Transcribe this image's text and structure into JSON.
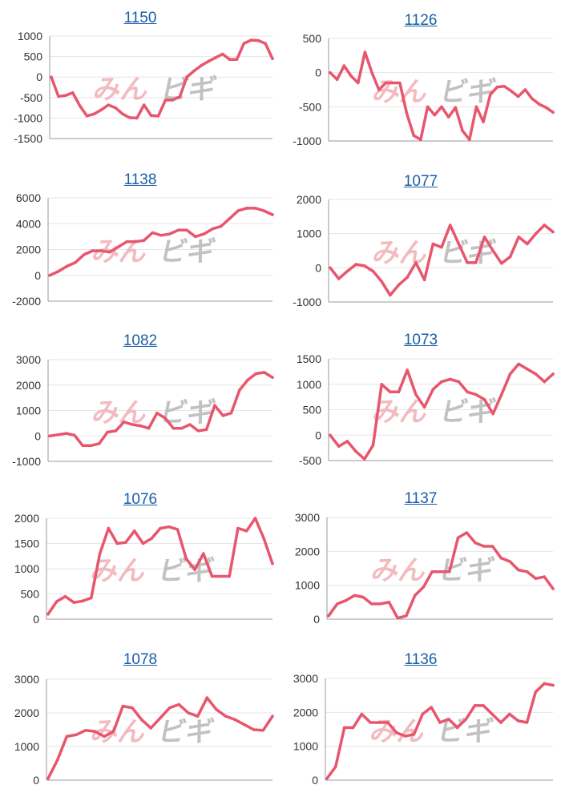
{
  "watermark": {
    "left": "みん",
    "right": "ビギ"
  },
  "colors": {
    "line": "#e8566e",
    "grid": "#e6e6e6",
    "axis": "#9a9a9a",
    "title": "#1a5ea8",
    "tick": "#333333",
    "wm_left": "#f0b0b4",
    "wm_right": "#b8b8b8"
  },
  "chart_data": [
    {
      "type": "line",
      "title": "1150",
      "ylim": [
        -1500,
        1000
      ],
      "yticks": [
        1000,
        500,
        0,
        -500,
        -1000,
        -1500
      ],
      "y": [
        0,
        -470,
        -450,
        -380,
        -700,
        -950,
        -900,
        -800,
        -680,
        -750,
        -900,
        -990,
        -1000,
        -680,
        -940,
        -950,
        -560,
        -560,
        -480,
        0,
        150,
        280,
        380,
        470,
        560,
        430,
        430,
        820,
        900,
        890,
        820,
        450
      ]
    },
    {
      "type": "line",
      "title": "1126",
      "ylim": [
        -1000,
        500
      ],
      "yticks": [
        500,
        0,
        -500,
        -1000
      ],
      "y": [
        0,
        -100,
        100,
        -50,
        -150,
        300,
        0,
        -250,
        -150,
        -150,
        -150,
        -600,
        -920,
        -980,
        -500,
        -620,
        -500,
        -650,
        -510,
        -850,
        -980,
        -500,
        -720,
        -320,
        -210,
        -200,
        -270,
        -350,
        -250,
        -380,
        -460,
        -510,
        -580
      ]
    },
    {
      "type": "line",
      "title": "1138",
      "ylim": [
        -2000,
        6000
      ],
      "yticks": [
        6000,
        4000,
        2000,
        0,
        -2000
      ],
      "y": [
        0,
        300,
        700,
        1000,
        1600,
        1900,
        1900,
        1800,
        2200,
        2600,
        2600,
        2700,
        3300,
        3100,
        3200,
        3500,
        3500,
        3000,
        3200,
        3600,
        3800,
        4400,
        5000,
        5200,
        5200,
        5000,
        4700
      ]
    },
    {
      "type": "line",
      "title": "1077",
      "ylim": [
        -1000,
        2000
      ],
      "yticks": [
        2000,
        1000,
        0,
        -1000
      ],
      "y": [
        0,
        -320,
        -100,
        100,
        60,
        -100,
        -400,
        -800,
        -500,
        -280,
        150,
        -350,
        700,
        600,
        1250,
        700,
        150,
        150,
        900,
        500,
        130,
        320,
        900,
        700,
        1000,
        1250,
        1050
      ]
    },
    {
      "type": "line",
      "title": "1082",
      "ylim": [
        -1000,
        3000
      ],
      "yticks": [
        3000,
        2000,
        1000,
        0,
        -1000
      ],
      "y": [
        0,
        50,
        100,
        30,
        -380,
        -380,
        -300,
        150,
        200,
        550,
        450,
        400,
        300,
        900,
        700,
        300,
        300,
        450,
        200,
        250,
        1200,
        800,
        900,
        1800,
        2200,
        2450,
        2500,
        2300
      ]
    },
    {
      "type": "line",
      "title": "1073",
      "ylim": [
        -500,
        1500
      ],
      "yticks": [
        1500,
        1000,
        500,
        0,
        -500
      ],
      "y": [
        0,
        -220,
        -120,
        -320,
        -470,
        -200,
        1000,
        850,
        850,
        1280,
        800,
        550,
        900,
        1050,
        1100,
        1050,
        850,
        800,
        700,
        420,
        800,
        1200,
        1400,
        1300,
        1200,
        1050,
        1200
      ]
    },
    {
      "type": "line",
      "title": "1076",
      "ylim": [
        0,
        2000
      ],
      "yticks": [
        2000,
        1500,
        1000,
        500,
        0
      ],
      "y": [
        100,
        350,
        450,
        330,
        360,
        420,
        1300,
        1800,
        1500,
        1520,
        1750,
        1500,
        1600,
        1800,
        1830,
        1780,
        1200,
        980,
        1300,
        850,
        850,
        850,
        1800,
        1750,
        2000,
        1600,
        1100
      ]
    },
    {
      "type": "line",
      "title": "1137",
      "ylim": [
        0,
        3000
      ],
      "yticks": [
        3000,
        2000,
        1000,
        0
      ],
      "y": [
        100,
        450,
        550,
        700,
        650,
        450,
        450,
        500,
        30,
        100,
        700,
        950,
        1400,
        1400,
        1400,
        2400,
        2550,
        2250,
        2150,
        2150,
        1800,
        1700,
        1450,
        1400,
        1200,
        1250,
        900
      ]
    },
    {
      "type": "line",
      "title": "1078",
      "ylim": [
        0,
        3000
      ],
      "yticks": [
        3000,
        2000,
        1000,
        0
      ],
      "y": [
        50,
        600,
        1300,
        1350,
        1480,
        1450,
        1300,
        1450,
        2200,
        2150,
        1800,
        1550,
        1850,
        2150,
        2250,
        2000,
        1900,
        2450,
        2100,
        1900,
        1800,
        1650,
        1500,
        1480,
        1900
      ]
    },
    {
      "type": "line",
      "title": "1136",
      "ylim": [
        0,
        3000
      ],
      "yticks": [
        3000,
        2000,
        1000,
        0
      ],
      "y": [
        50,
        400,
        1550,
        1550,
        1950,
        1700,
        1700,
        1700,
        1400,
        1300,
        1350,
        1950,
        2150,
        1700,
        1800,
        1550,
        1800,
        2200,
        2200,
        1950,
        1700,
        1950,
        1750,
        1700,
        2600,
        2850,
        2800
      ]
    }
  ]
}
